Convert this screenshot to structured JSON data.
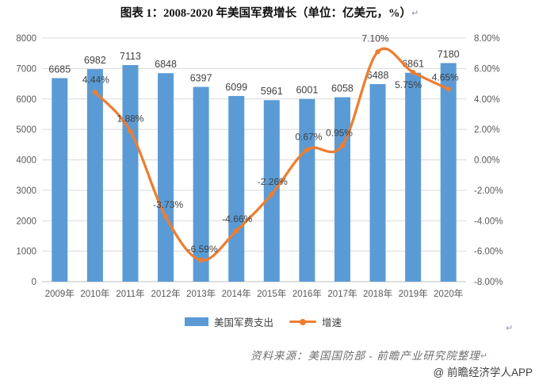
{
  "title": "图表 1：2008-2020 年美国军费增长（单位：亿美元，%）",
  "paragraph_mark": "↵",
  "chart_data": {
    "type": "bar",
    "subtype": "combo-bar-line-dual-axis",
    "categories": [
      "2009年",
      "2010年",
      "2011年",
      "2012年",
      "2013年",
      "2014年",
      "2015年",
      "2016年",
      "2017年",
      "2018年",
      "2019年",
      "2020年"
    ],
    "series": [
      {
        "name": "美国军费支出",
        "type": "bar",
        "axis": "left",
        "color": "#5B9BD5",
        "values": [
          6685,
          6982,
          7113,
          6848,
          6397,
          6099,
          5961,
          6001,
          6058,
          6488,
          6861,
          7180
        ],
        "value_labels": [
          "6685",
          "6982",
          "7113",
          "6848",
          "6397",
          "6099",
          "5961",
          "6001",
          "6058",
          "6488",
          "6861",
          "7180"
        ]
      },
      {
        "name": "增速",
        "type": "line",
        "axis": "right",
        "color": "#ED7D31",
        "smooth": true,
        "values": [
          null,
          4.44,
          1.88,
          -3.73,
          -6.59,
          -4.66,
          -2.26,
          0.67,
          0.95,
          7.1,
          5.75,
          4.65
        ],
        "point_labels": [
          null,
          "4.44%",
          "1.88%",
          "-3.73%",
          "-6.59%",
          "-4.66%",
          "-2.26%",
          "0.67%",
          "0.95%",
          "7.10%",
          "5.75%",
          "4.65%"
        ]
      }
    ],
    "left_axis": {
      "min": 0,
      "max": 8000,
      "step": 1000,
      "tick_labels": [
        "8000",
        "7000",
        "6000",
        "5000",
        "4000",
        "3000",
        "2000",
        "1000",
        "0"
      ]
    },
    "right_axis": {
      "min": -8,
      "max": 8,
      "step": 2,
      "tick_labels": [
        "8.00%",
        "6.00%",
        "4.00%",
        "2.00%",
        "0.00%",
        "-2.00%",
        "-4.00%",
        "-6.00%",
        "-8.00%"
      ]
    },
    "grid": true,
    "legend_position": "bottom",
    "title": "图表 1：2008-2020 年美国军费增长（单位：亿美元，%）"
  },
  "legend": {
    "items": [
      {
        "label": "美国军费支出",
        "swatch": "bar-swatch",
        "color": "#5B9BD5"
      },
      {
        "label": "增速",
        "swatch": "line-marker-swatch",
        "color": "#ED7D31"
      }
    ]
  },
  "source_note": "资料来源：美国国防部 - 前瞻产业研究院整理",
  "watermark": "@ 前瞻经济学人APP",
  "colors": {
    "bar": "#5B9BD5",
    "line": "#ED7D31",
    "grid": "#D9D9D9",
    "axis_line": "#BFBFBF",
    "axis_text": "#595959",
    "data_label": "#3f3f3f"
  }
}
